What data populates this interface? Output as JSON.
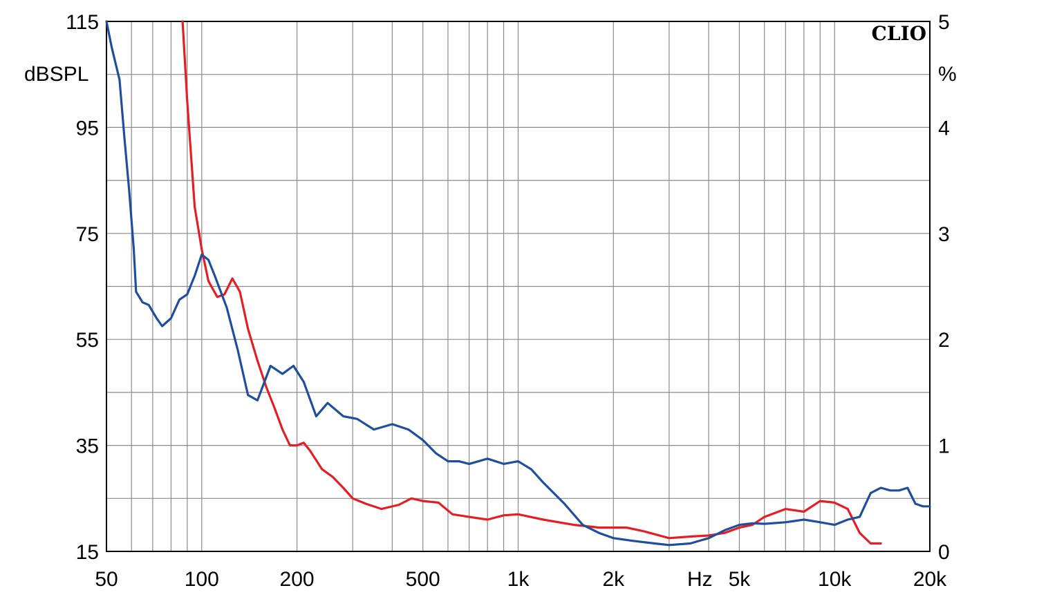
{
  "chart_data": {
    "type": "line",
    "brand": "CLIO",
    "x_scale": "log",
    "xlim": [
      50,
      20000
    ],
    "ylim_left": [
      15,
      115
    ],
    "ylim_right": [
      0,
      5
    ],
    "ylabel_left": "dBSPL",
    "ylabel_right": "%",
    "xunit": "Hz",
    "grid": true,
    "x_ticks": [
      {
        "value": 50,
        "label": "50"
      },
      {
        "value": 100,
        "label": "100"
      },
      {
        "value": 200,
        "label": "200"
      },
      {
        "value": 500,
        "label": "500"
      },
      {
        "value": 1000,
        "label": "1k"
      },
      {
        "value": 2000,
        "label": "2k"
      },
      {
        "value": 5000,
        "label": "5k"
      },
      {
        "value": 10000,
        "label": "10k"
      },
      {
        "value": 20000,
        "label": "20k"
      }
    ],
    "y_ticks_left": [
      {
        "value": 115,
        "label": "115"
      },
      {
        "value": 95,
        "label": "95"
      },
      {
        "value": 75,
        "label": "75"
      },
      {
        "value": 55,
        "label": "55"
      },
      {
        "value": 35,
        "label": "35"
      },
      {
        "value": 15,
        "label": "15"
      }
    ],
    "y_ticks_right": [
      {
        "value": 5,
        "label": "5"
      },
      {
        "value": 4,
        "label": "4"
      },
      {
        "value": 3,
        "label": "3"
      },
      {
        "value": 2,
        "label": "2"
      },
      {
        "value": 1,
        "label": "1"
      },
      {
        "value": 0,
        "label": "0"
      }
    ],
    "series": [
      {
        "color": "#e31e24",
        "axis": "left",
        "points": [
          [
            87,
            115
          ],
          [
            90,
            100
          ],
          [
            95,
            80
          ],
          [
            100,
            72
          ],
          [
            105,
            66
          ],
          [
            112,
            63
          ],
          [
            118,
            63.5
          ],
          [
            125,
            66.5
          ],
          [
            132,
            64
          ],
          [
            140,
            57
          ],
          [
            150,
            51
          ],
          [
            160,
            46
          ],
          [
            170,
            42
          ],
          [
            180,
            38
          ],
          [
            190,
            35
          ],
          [
            200,
            35
          ],
          [
            210,
            35.5
          ],
          [
            220,
            34
          ],
          [
            240,
            30.5
          ],
          [
            260,
            29
          ],
          [
            280,
            27
          ],
          [
            300,
            25
          ],
          [
            330,
            24
          ],
          [
            370,
            23
          ],
          [
            420,
            23.8
          ],
          [
            460,
            25
          ],
          [
            500,
            24.5
          ],
          [
            560,
            24.2
          ],
          [
            620,
            22
          ],
          [
            700,
            21.5
          ],
          [
            800,
            21
          ],
          [
            900,
            21.8
          ],
          [
            1000,
            22
          ],
          [
            1200,
            21
          ],
          [
            1500,
            20
          ],
          [
            1800,
            19.5
          ],
          [
            2200,
            19.5
          ],
          [
            2500,
            18.8
          ],
          [
            3000,
            17.5
          ],
          [
            3500,
            17.8
          ],
          [
            4000,
            18
          ],
          [
            4500,
            18.5
          ],
          [
            5000,
            19.5
          ],
          [
            5500,
            20
          ],
          [
            6000,
            21.5
          ],
          [
            7000,
            23
          ],
          [
            8000,
            22.5
          ],
          [
            9000,
            24.5
          ],
          [
            10000,
            24.2
          ],
          [
            11000,
            23
          ],
          [
            12000,
            18.5
          ],
          [
            13000,
            16.5
          ],
          [
            14000,
            16.5
          ]
        ]
      },
      {
        "color": "#1f4e9c",
        "axis": "left",
        "points": [
          [
            50,
            115
          ],
          [
            52,
            110
          ],
          [
            55,
            104
          ],
          [
            57,
            93
          ],
          [
            59,
            83
          ],
          [
            61,
            72
          ],
          [
            62,
            64
          ],
          [
            65,
            62
          ],
          [
            68,
            61.5
          ],
          [
            72,
            59
          ],
          [
            75,
            57.5
          ],
          [
            80,
            59
          ],
          [
            85,
            62.5
          ],
          [
            90,
            63.5
          ],
          [
            95,
            67
          ],
          [
            100,
            71
          ],
          [
            105,
            70
          ],
          [
            110,
            67
          ],
          [
            120,
            61
          ],
          [
            130,
            53
          ],
          [
            140,
            44.5
          ],
          [
            150,
            43.5
          ],
          [
            165,
            50
          ],
          [
            180,
            48.5
          ],
          [
            195,
            50
          ],
          [
            210,
            47
          ],
          [
            230,
            40.5
          ],
          [
            250,
            43
          ],
          [
            280,
            40.5
          ],
          [
            310,
            40
          ],
          [
            350,
            38
          ],
          [
            400,
            39
          ],
          [
            450,
            38
          ],
          [
            500,
            36
          ],
          [
            550,
            33.5
          ],
          [
            600,
            32
          ],
          [
            650,
            32
          ],
          [
            700,
            31.5
          ],
          [
            800,
            32.5
          ],
          [
            900,
            31.5
          ],
          [
            1000,
            32
          ],
          [
            1100,
            30.5
          ],
          [
            1200,
            28
          ],
          [
            1400,
            24
          ],
          [
            1600,
            20
          ],
          [
            1800,
            18.5
          ],
          [
            2000,
            17.5
          ],
          [
            2300,
            17
          ],
          [
            2700,
            16.5
          ],
          [
            3000,
            16.2
          ],
          [
            3500,
            16.5
          ],
          [
            4000,
            17.5
          ],
          [
            4500,
            19
          ],
          [
            5000,
            20
          ],
          [
            5500,
            20.3
          ],
          [
            6000,
            20.2
          ],
          [
            7000,
            20.5
          ],
          [
            8000,
            21
          ],
          [
            9000,
            20.5
          ],
          [
            10000,
            20
          ],
          [
            11000,
            21
          ],
          [
            12000,
            21.5
          ],
          [
            13000,
            26
          ],
          [
            14000,
            27
          ],
          [
            15000,
            26.5
          ],
          [
            16000,
            26.5
          ],
          [
            17000,
            27
          ],
          [
            18000,
            24
          ],
          [
            19000,
            23.5
          ],
          [
            20000,
            23.5
          ]
        ]
      }
    ]
  }
}
